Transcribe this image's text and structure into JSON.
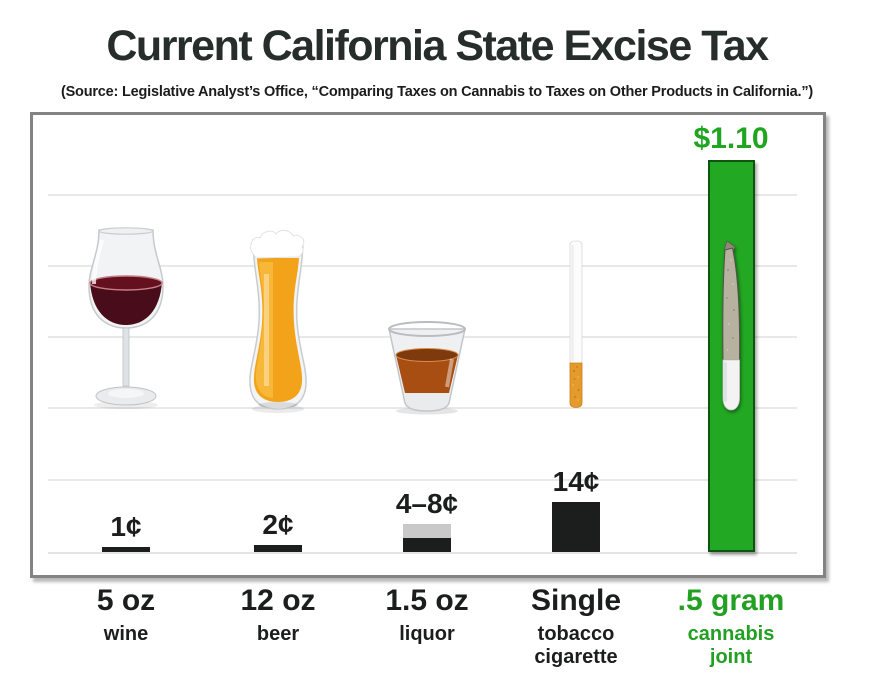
{
  "page": {
    "title": "Current California State Excise Tax",
    "subtitle": "(Source: Legislative Analyst’s Office, “Comparing Taxes on Cannabis to Taxes on Other Products in California.”)"
  },
  "chart_data": {
    "type": "bar",
    "title": "Current California State Excise Tax",
    "source": "Legislative Analyst’s Office, “Comparing Taxes on Cannabis to Taxes on Other Products in California.”",
    "unit": "US cents per serving",
    "ylim": [
      0,
      110
    ],
    "gridline_interval_cents": 20,
    "grid": true,
    "legend": false,
    "categories": [
      {
        "amount": "5 oz",
        "sub_lines": [
          "wine"
        ],
        "tax_label": "1¢",
        "value": 1,
        "icon": "wine-glass",
        "bar_color": "#1c1e1d"
      },
      {
        "amount": "12 oz",
        "sub_lines": [
          "beer"
        ],
        "tax_label": "2¢",
        "value": 2,
        "icon": "beer-glass",
        "bar_color": "#1c1e1d"
      },
      {
        "amount": "1.5 oz",
        "sub_lines": [
          "liquor"
        ],
        "tax_label": "4–8¢",
        "value_low": 4,
        "value_high": 8,
        "icon": "shot-glass",
        "bar_color": "#1c1e1d",
        "range_color": "#c9c9c9"
      },
      {
        "amount": "Single",
        "sub_lines": [
          "tobacco",
          "cigarette"
        ],
        "tax_label": "14¢",
        "value": 14,
        "icon": "tobacco-cigarette",
        "bar_color": "#1c1e1d"
      },
      {
        "amount": ".5 gram",
        "sub_lines": [
          "cannabis",
          "joint"
        ],
        "tax_label": "$1.10",
        "value": 110,
        "icon": "cannabis-joint",
        "bar_color": "#22a822",
        "highlight": true
      }
    ]
  },
  "colors": {
    "accent_green": "#22a822",
    "bar_black": "#1c1e1d",
    "range_gray": "#c9c9c9",
    "grid_gray": "#e8e8e8",
    "frame_gray": "#838383"
  }
}
